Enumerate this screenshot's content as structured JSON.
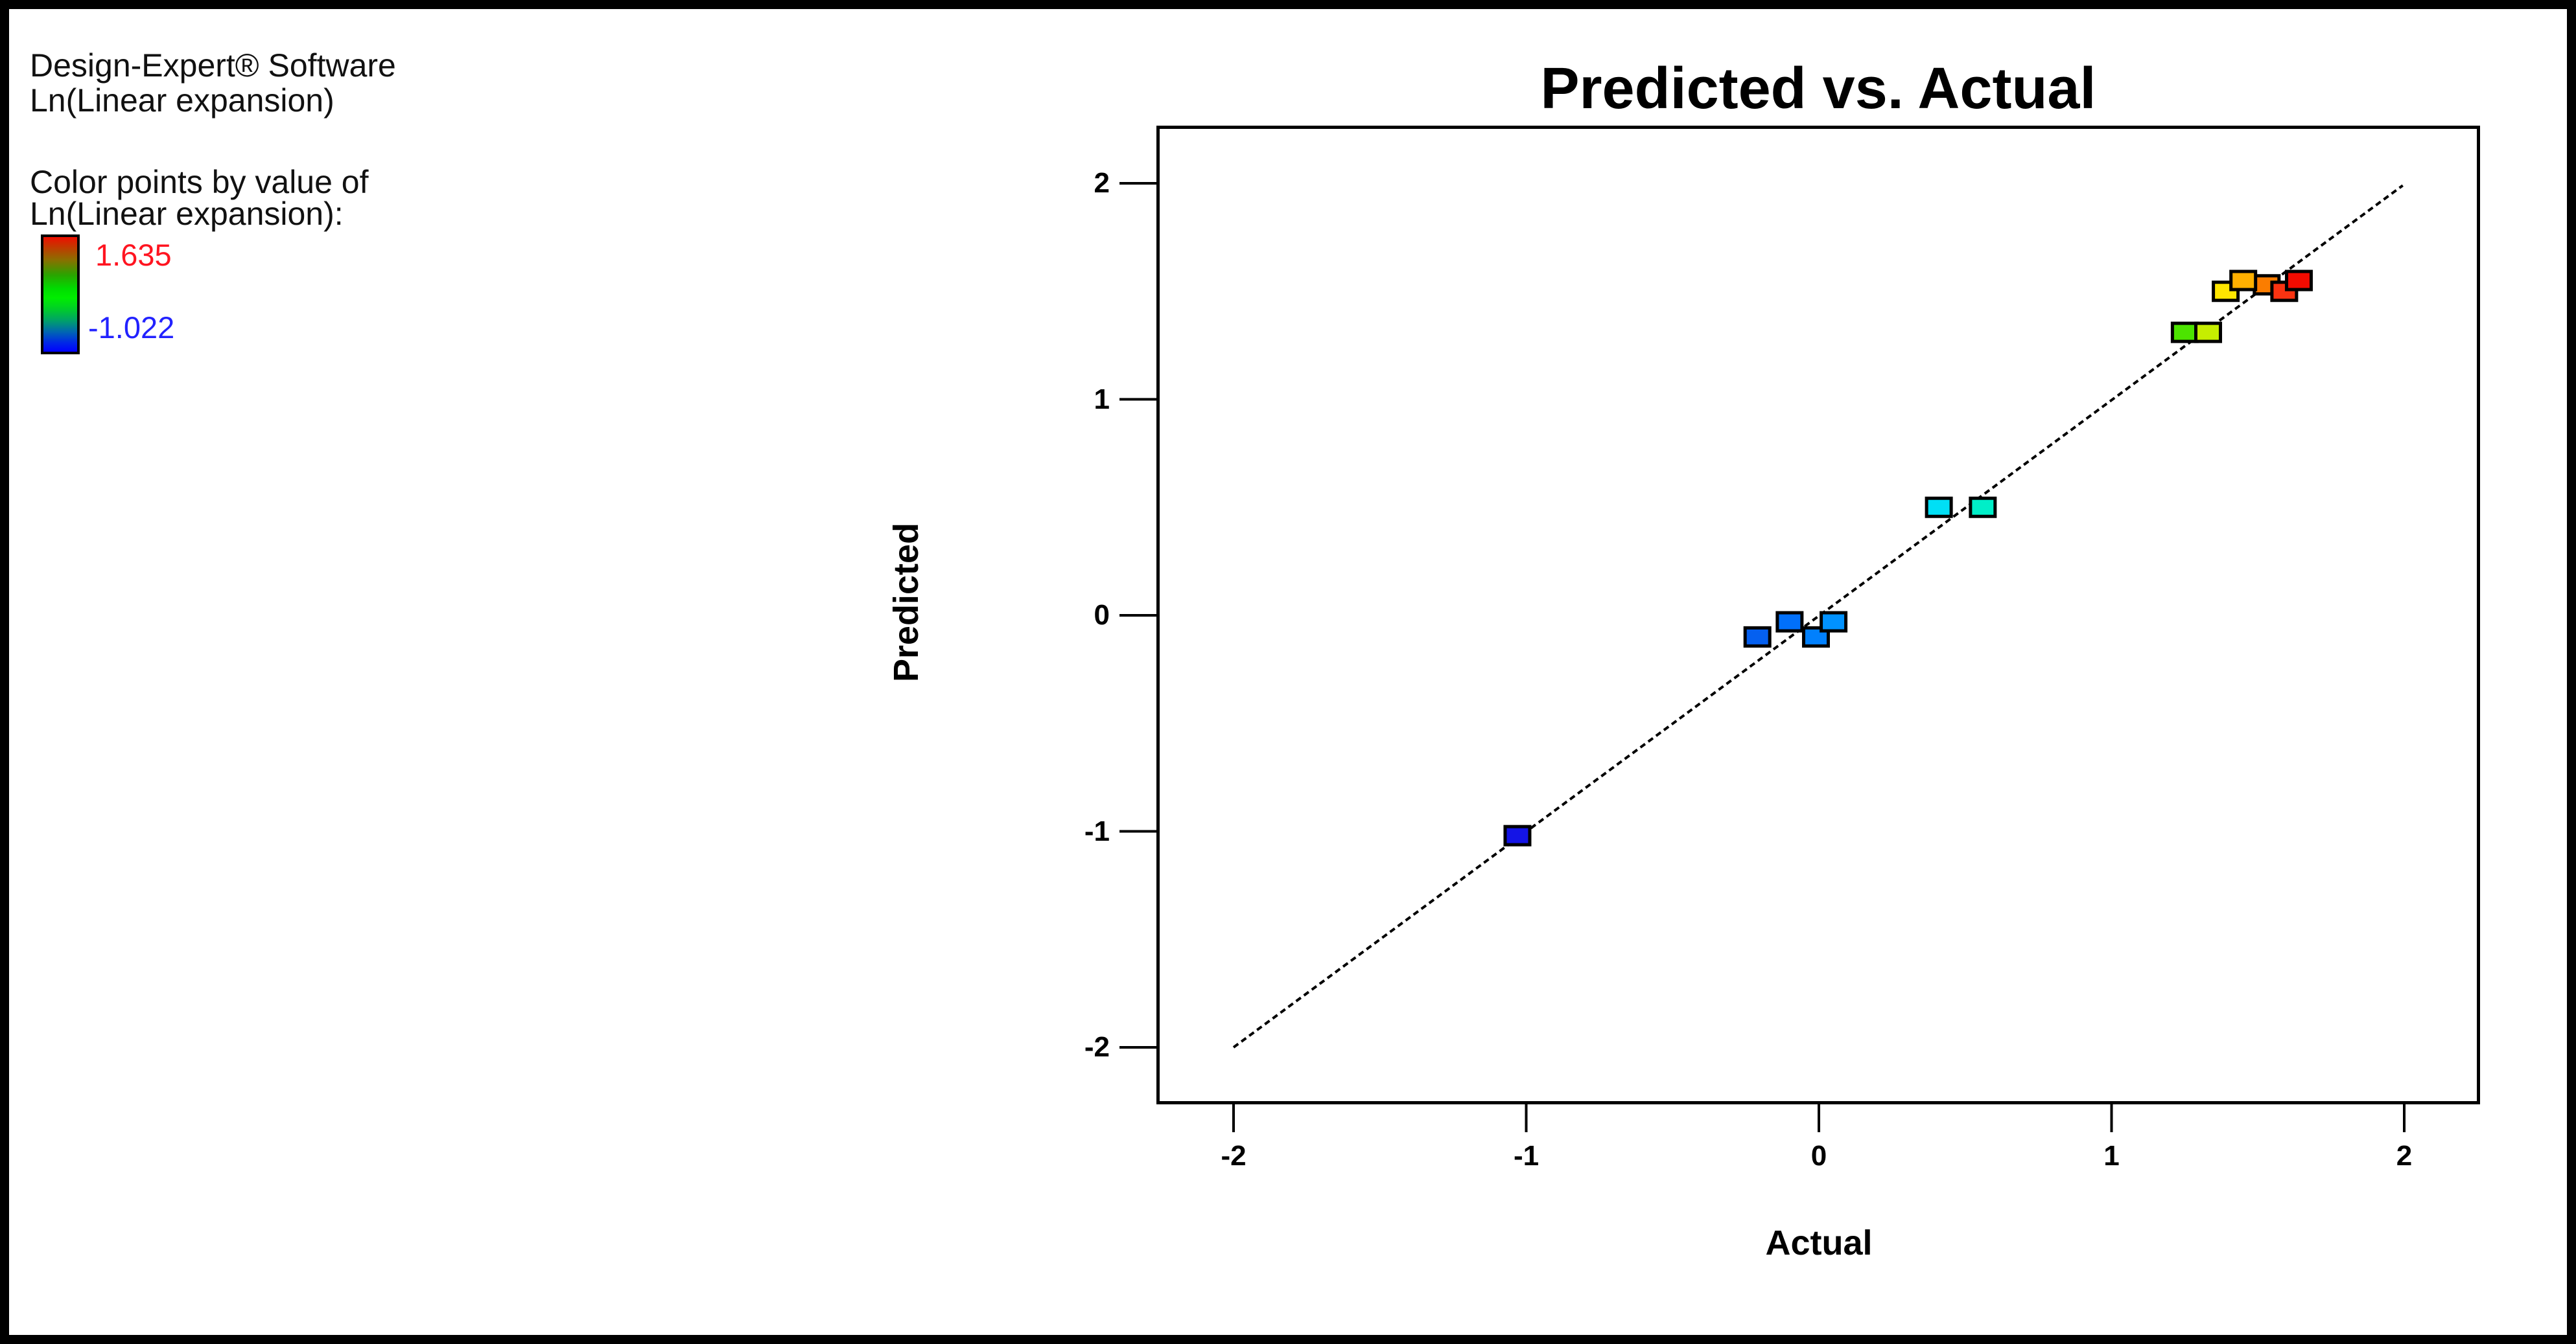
{
  "legend": {
    "software_name": "Design-Expert® Software",
    "response_name": "Ln(Linear expansion)",
    "color_by_line1": "Color points by value of",
    "color_by_line2": "Ln(Linear expansion):",
    "max_label": "1.635",
    "min_label": "-1.022",
    "max_label_color": "#ff1420",
    "min_label_color": "#2222ff",
    "colorbar_stops": [
      "#ee0f00 0%",
      "#8a6f00 20%",
      "#2aa400 33%",
      "#00dc00 45%",
      "#00ee00 53%",
      "#00cc2a 63%",
      "#00a06a 73%",
      "#0064b4 83%",
      "#0028e6 92%",
      "#0000ff 100%"
    ]
  },
  "chart_data": {
    "type": "scatter",
    "title": "Predicted vs. Actual",
    "xlabel": "Actual",
    "ylabel": "Predicted",
    "xlim": [
      -2.26,
      2.26
    ],
    "ylim": [
      -2.26,
      2.27
    ],
    "x_ticks": [
      "-2",
      "-1",
      "0",
      "1",
      "2"
    ],
    "y_ticks": [
      "2",
      "1",
      "0",
      "-1",
      "-2"
    ],
    "x_tick_values": [
      -2,
      -1,
      0,
      1,
      2
    ],
    "y_tick_values": [
      2,
      1,
      0,
      -1,
      -2
    ],
    "grid": false,
    "legend_position": "none",
    "color_scale": {
      "min": -1.022,
      "max": 1.635
    },
    "diagonal_line": {
      "x1": -2.0,
      "y1": -2.0,
      "x2": 1.995,
      "y2": 1.99,
      "style": "thin-dotted"
    },
    "points": [
      {
        "actual": -1.03,
        "predicted": -1.02,
        "color": "#1414e6"
      },
      {
        "actual": -0.21,
        "predicted": -0.1,
        "color": "#0560f0"
      },
      {
        "actual": -0.01,
        "predicted": -0.1,
        "color": "#0180fd"
      },
      {
        "actual": -0.1,
        "predicted": -0.03,
        "color": "#0170fa"
      },
      {
        "actual": 0.05,
        "predicted": -0.03,
        "color": "#0192ff"
      },
      {
        "actual": 0.41,
        "predicted": 0.5,
        "color": "#00dff5"
      },
      {
        "actual": 0.56,
        "predicted": 0.5,
        "color": "#00eec8"
      },
      {
        "actual": 1.25,
        "predicted": 1.31,
        "color": "#4ce400"
      },
      {
        "actual": 1.33,
        "predicted": 1.31,
        "color": "#c6ee00"
      },
      {
        "actual": 1.53,
        "predicted": 1.53,
        "color": "#fb7d00"
      },
      {
        "actual": 1.39,
        "predicted": 1.5,
        "color": "#ffe600"
      },
      {
        "actual": 1.59,
        "predicted": 1.5,
        "color": "#f93311"
      },
      {
        "actual": 1.45,
        "predicted": 1.55,
        "color": "#ffb000"
      },
      {
        "actual": 1.64,
        "predicted": 1.55,
        "color": "#f30b00"
      }
    ]
  }
}
